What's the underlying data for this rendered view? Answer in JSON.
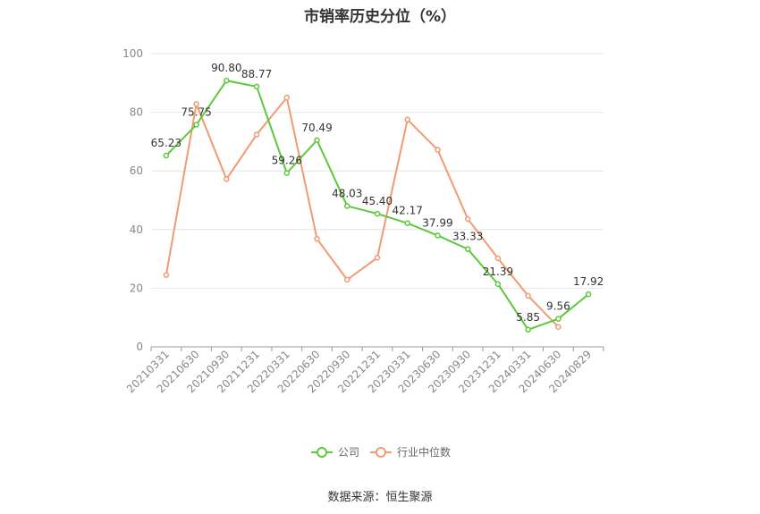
{
  "chart_data": {
    "type": "line",
    "title": "市销率历史分位（%）",
    "source": "数据来源：恒生聚源",
    "categories": [
      "20210331",
      "20210630",
      "20210930",
      "20211231",
      "20220331",
      "20220630",
      "20220930",
      "20221231",
      "20230331",
      "20230630",
      "20230930",
      "20231231",
      "20240331",
      "20240630",
      "20240829"
    ],
    "ylim": [
      0,
      100
    ],
    "yticks": [
      0,
      20,
      40,
      60,
      80,
      100
    ],
    "grid": true,
    "legend_position": "bottom",
    "series": [
      {
        "name": "公司",
        "color": "#5cc93c",
        "values": [
          65.23,
          75.75,
          90.8,
          88.77,
          59.26,
          70.49,
          48.03,
          45.4,
          42.17,
          37.99,
          33.33,
          21.39,
          5.85,
          9.56,
          17.92
        ],
        "labels": [
          "65.23",
          "75.75",
          "90.80",
          "88.77",
          "59.26",
          "70.49",
          "48.03",
          "45.40",
          "42.17",
          "37.99",
          "33.33",
          "21.39",
          "5.85",
          "9.56",
          "17.92"
        ]
      },
      {
        "name": "行业中位数",
        "color": "#f29a72",
        "values": [
          24.5,
          82.8,
          57.2,
          72.4,
          85.0,
          36.8,
          22.9,
          30.4,
          77.5,
          67.2,
          43.6,
          30.2,
          17.4,
          6.8,
          null
        ]
      }
    ]
  }
}
